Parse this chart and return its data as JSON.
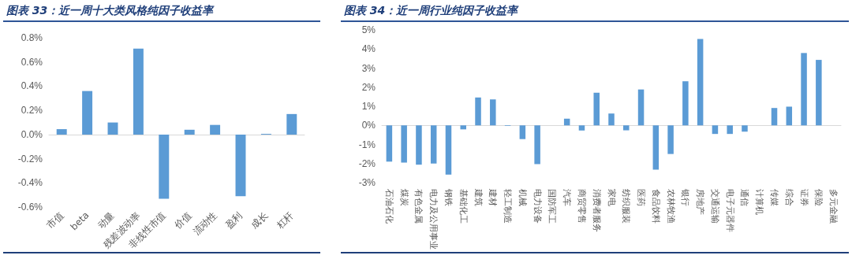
{
  "chart_data": [
    {
      "type": "bar",
      "title": "图表 33：近一周十大类风格纯因子收益率",
      "categories": [
        "市值",
        "beta",
        "动量",
        "残差波动率",
        "非线性市值",
        "价值",
        "流动性",
        "盈利",
        "成长",
        "杠杆"
      ],
      "values": [
        0.045,
        0.36,
        0.1,
        0.71,
        -0.53,
        0.04,
        0.08,
        -0.51,
        0.006,
        0.17
      ],
      "color": "#5b9bd5",
      "ylim": [
        -0.6,
        0.8
      ],
      "yticks": [
        {
          "value": -0.6,
          "label": "-0.6%"
        },
        {
          "value": -0.4,
          "label": "-0.4%"
        },
        {
          "value": -0.2,
          "label": "-0.2%"
        },
        {
          "value": 0,
          "label": "0.0%"
        },
        {
          "value": 0.2,
          "label": "0.2%"
        },
        {
          "value": 0.4,
          "label": "0.4%"
        },
        {
          "value": 0.6,
          "label": "0.6%"
        },
        {
          "value": 0.8,
          "label": "0.8%"
        }
      ]
    },
    {
      "type": "bar",
      "title": "图表 34：近一周行业纯因子收益率",
      "categories": [
        "石油石化",
        "煤炭",
        "有色金属",
        "电力及公用事业",
        "钢铁",
        "基础化工",
        "建筑",
        "建材",
        "轻工制造",
        "机械",
        "电力设备",
        "国防军工",
        "汽车",
        "商贸零售",
        "消费者服务",
        "家电",
        "纺织服装",
        "医药",
        "食品饮料",
        "农林牧渔",
        "银行",
        "房地产",
        "交通运输",
        "电子元器件",
        "通信",
        "计算机",
        "传媒",
        "综合",
        "证券",
        "保险",
        "多元金融"
      ],
      "values": [
        -1.9,
        -1.95,
        -2.06,
        -2.0,
        -2.58,
        -0.21,
        1.46,
        1.36,
        -0.03,
        -0.72,
        -2.03,
        null,
        0.35,
        -0.27,
        1.71,
        0.62,
        -0.26,
        1.88,
        -2.32,
        -1.5,
        2.31,
        4.53,
        -0.45,
        -0.45,
        -0.33,
        null,
        0.91,
        0.98,
        3.79,
        3.43,
        0
      ],
      "color": "#5b9bd5",
      "ylim": [
        -3,
        5
      ],
      "yticks": [
        {
          "value": -3,
          "label": "-3%"
        },
        {
          "value": -2,
          "label": "-2%"
        },
        {
          "value": -1,
          "label": "-1%"
        },
        {
          "value": 0,
          "label": "0%"
        },
        {
          "value": 1,
          "label": "1%"
        },
        {
          "value": 2,
          "label": "2%"
        },
        {
          "value": 3,
          "label": "3%"
        },
        {
          "value": 4,
          "label": "4%"
        },
        {
          "value": 5,
          "label": "5%"
        }
      ]
    }
  ]
}
